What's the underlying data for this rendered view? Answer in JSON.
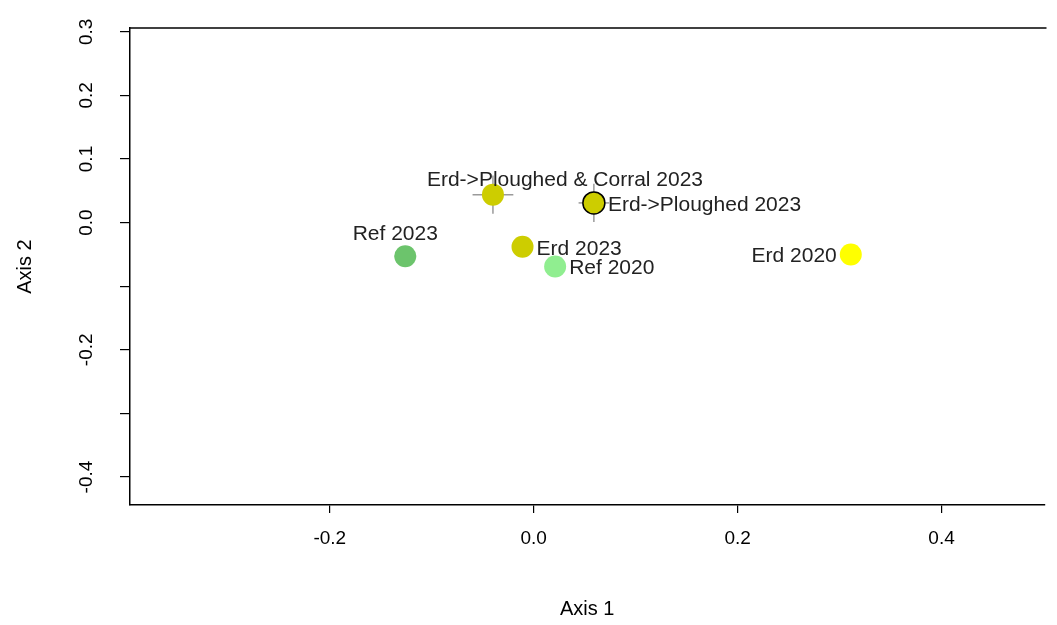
{
  "chart_data": {
    "type": "scatter",
    "xlabel": "Axis 1",
    "ylabel": "Axis 2",
    "xlim": [
      -0.396,
      0.501
    ],
    "ylim": [
      -0.444,
      0.306
    ],
    "xticks": [
      {
        "value": -0.2,
        "label": "-0.2"
      },
      {
        "value": 0,
        "label": "0.0"
      },
      {
        "value": 0.2,
        "label": "0.2"
      },
      {
        "value": 0.4,
        "label": "0.4"
      }
    ],
    "yticks": [
      {
        "value": -0.4,
        "label": "-0.4"
      },
      {
        "value": -0.3,
        "label": null
      },
      {
        "value": -0.2,
        "label": "-0.2"
      },
      {
        "value": -0.1,
        "label": null
      },
      {
        "value": 0,
        "label": "0.0"
      },
      {
        "value": 0.1,
        "label": "0.1"
      },
      {
        "value": 0.2,
        "label": "0.2"
      },
      {
        "value": 0.3,
        "label": "0.3"
      }
    ],
    "grid": false,
    "legend": false,
    "marker": "circle",
    "series": [
      {
        "name": "Ref 2023",
        "color": "#6cc46c",
        "x": [
          -0.126
        ],
        "values": [
          -0.053
        ]
      },
      {
        "name": "Erd->Ploughed & Corral 2023",
        "color": "#cdcd00",
        "x": [
          -0.04
        ],
        "values": [
          0.044
        ],
        "errors": [
          0.03
        ],
        "xerrors": [
          0.02
        ]
      },
      {
        "name": "Erd->Ploughed 2023",
        "color": "#cdcd00",
        "x": [
          0.059
        ],
        "values": [
          0.031
        ],
        "errors": [
          0.03
        ],
        "xerrors": [
          0.015
        ]
      },
      {
        "name": "Erd 2023",
        "color": "#cdcd00",
        "x": [
          -0.011
        ],
        "values": [
          -0.038
        ]
      },
      {
        "name": "Ref 2020",
        "color": "#90ee90",
        "x": [
          0.021
        ],
        "values": [
          -0.069
        ]
      },
      {
        "name": "Erd 2020",
        "color": "#ffff00",
        "x": [
          0.311
        ],
        "values": [
          -0.05
        ]
      }
    ]
  }
}
